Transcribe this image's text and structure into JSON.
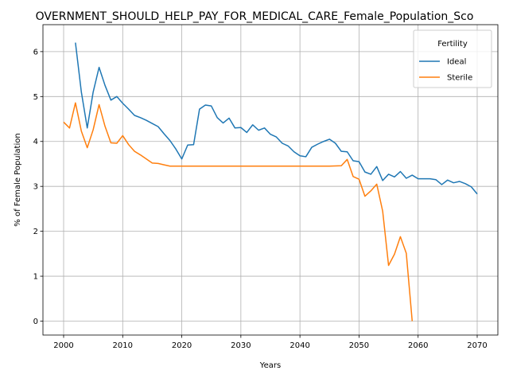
{
  "chart_data": {
    "type": "line",
    "title": "OVERNMENT_SHOULD_HELP_PAY_FOR_MEDICAL_CARE_Female_Population_Sco",
    "xlabel": "Years",
    "ylabel": "% of Female Population",
    "xlim": [
      1996.5,
      2073.5
    ],
    "ylim": [
      -0.31,
      6.6
    ],
    "xticks": [
      2000,
      2010,
      2020,
      2030,
      2040,
      2050,
      2060,
      2070
    ],
    "yticks": [
      0,
      1,
      2,
      3,
      4,
      5,
      6
    ],
    "grid": true,
    "legend": {
      "title": "Fertility",
      "placement": "top-right"
    },
    "series": [
      {
        "name": "Ideal",
        "color": "#1f77b4",
        "points": [
          [
            2002,
            6.2
          ],
          [
            2003,
            5.1
          ],
          [
            2004,
            4.3
          ],
          [
            2005,
            5.1
          ],
          [
            2006,
            5.65
          ],
          [
            2007,
            5.25
          ],
          [
            2008,
            4.92
          ],
          [
            2009,
            5.0
          ],
          [
            2010,
            4.85
          ],
          [
            2011,
            4.72
          ],
          [
            2012,
            4.58
          ],
          [
            2013,
            4.53
          ],
          [
            2014,
            4.47
          ],
          [
            2015,
            4.4
          ],
          [
            2016,
            4.33
          ],
          [
            2017,
            4.17
          ],
          [
            2018,
            4.02
          ],
          [
            2019,
            3.83
          ],
          [
            2020,
            3.61
          ],
          [
            2021,
            3.92
          ],
          [
            2022,
            3.93
          ],
          [
            2023,
            4.72
          ],
          [
            2024,
            4.81
          ],
          [
            2025,
            4.79
          ],
          [
            2026,
            4.53
          ],
          [
            2027,
            4.41
          ],
          [
            2028,
            4.52
          ],
          [
            2029,
            4.3
          ],
          [
            2030,
            4.31
          ],
          [
            2031,
            4.2
          ],
          [
            2032,
            4.37
          ],
          [
            2033,
            4.25
          ],
          [
            2034,
            4.3
          ],
          [
            2035,
            4.16
          ],
          [
            2036,
            4.1
          ],
          [
            2037,
            3.96
          ],
          [
            2038,
            3.9
          ],
          [
            2039,
            3.77
          ],
          [
            2040,
            3.68
          ],
          [
            2041,
            3.66
          ],
          [
            2042,
            3.87
          ],
          [
            2043,
            3.94
          ],
          [
            2044,
            4.0
          ],
          [
            2045,
            4.05
          ],
          [
            2046,
            3.96
          ],
          [
            2047,
            3.78
          ],
          [
            2048,
            3.77
          ],
          [
            2049,
            3.57
          ],
          [
            2050,
            3.55
          ],
          [
            2051,
            3.32
          ],
          [
            2052,
            3.27
          ],
          [
            2053,
            3.44
          ],
          [
            2054,
            3.13
          ],
          [
            2055,
            3.27
          ],
          [
            2056,
            3.21
          ],
          [
            2057,
            3.33
          ],
          [
            2058,
            3.18
          ],
          [
            2059,
            3.25
          ],
          [
            2060,
            3.17
          ],
          [
            2061,
            3.17
          ],
          [
            2062,
            3.17
          ],
          [
            2063,
            3.15
          ],
          [
            2064,
            3.04
          ],
          [
            2065,
            3.14
          ],
          [
            2066,
            3.08
          ],
          [
            2067,
            3.11
          ],
          [
            2068,
            3.06
          ],
          [
            2069,
            2.99
          ],
          [
            2070,
            2.83
          ]
        ]
      },
      {
        "name": "Sterile",
        "color": "#ff7f0e",
        "points": [
          [
            2000,
            4.43
          ],
          [
            2001,
            4.3
          ],
          [
            2002,
            4.86
          ],
          [
            2003,
            4.23
          ],
          [
            2004,
            3.86
          ],
          [
            2005,
            4.26
          ],
          [
            2006,
            4.82
          ],
          [
            2007,
            4.34
          ],
          [
            2008,
            3.97
          ],
          [
            2009,
            3.96
          ],
          [
            2010,
            4.13
          ],
          [
            2011,
            3.93
          ],
          [
            2012,
            3.78
          ],
          [
            2013,
            3.7
          ],
          [
            2014,
            3.61
          ],
          [
            2015,
            3.52
          ],
          [
            2016,
            3.51
          ],
          [
            2017,
            3.48
          ],
          [
            2018,
            3.45
          ],
          [
            2019,
            3.45
          ],
          [
            2020,
            3.45
          ],
          [
            2025,
            3.45
          ],
          [
            2030,
            3.45
          ],
          [
            2035,
            3.45
          ],
          [
            2040,
            3.45
          ],
          [
            2045,
            3.45
          ],
          [
            2047,
            3.46
          ],
          [
            2048,
            3.6
          ],
          [
            2049,
            3.22
          ],
          [
            2050,
            3.16
          ],
          [
            2051,
            2.78
          ],
          [
            2052,
            2.9
          ],
          [
            2053,
            3.05
          ],
          [
            2054,
            2.45
          ],
          [
            2055,
            1.24
          ],
          [
            2056,
            1.49
          ],
          [
            2057,
            1.88
          ],
          [
            2058,
            1.51
          ],
          [
            2059,
            0.0
          ]
        ]
      }
    ]
  }
}
